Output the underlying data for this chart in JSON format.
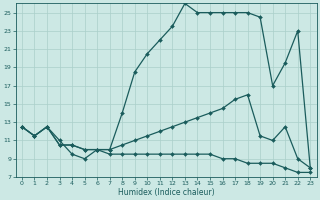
{
  "xlabel": "Humidex (Indice chaleur)",
  "bg_color": "#cce8e4",
  "grid_color": "#aacfca",
  "line_color": "#1a5c5c",
  "xlim": [
    -0.5,
    23.5
  ],
  "ylim": [
    7,
    26
  ],
  "xticks": [
    0,
    1,
    2,
    3,
    4,
    5,
    6,
    7,
    8,
    9,
    10,
    11,
    12,
    13,
    14,
    15,
    16,
    17,
    18,
    19,
    20,
    21,
    22,
    23
  ],
  "yticks": [
    7,
    9,
    11,
    13,
    15,
    17,
    19,
    21,
    23,
    25
  ],
  "line1_x": [
    0,
    1,
    2,
    3,
    4,
    5,
    6,
    7,
    8,
    9,
    10,
    11,
    12,
    13,
    14,
    15,
    16,
    17,
    18,
    19,
    20,
    21,
    22,
    23
  ],
  "line1_y": [
    12.5,
    11.5,
    12.5,
    11.0,
    9.5,
    9.0,
    10.0,
    10.0,
    14.0,
    18.5,
    20.5,
    22.0,
    23.5,
    26.0,
    25.0,
    25.0,
    25.0,
    25.0,
    25.0,
    24.5,
    17.0,
    19.5,
    23.0,
    8.0
  ],
  "line2_x": [
    0,
    1,
    2,
    3,
    4,
    5,
    6,
    7,
    8,
    9,
    10,
    11,
    12,
    13,
    14,
    15,
    16,
    17,
    18,
    19,
    20,
    21,
    22,
    23
  ],
  "line2_y": [
    12.5,
    11.5,
    12.5,
    10.5,
    10.5,
    10.0,
    10.0,
    10.0,
    10.5,
    11.0,
    11.5,
    12.0,
    12.5,
    13.0,
    13.5,
    14.0,
    14.5,
    15.5,
    16.0,
    11.5,
    11.0,
    12.5,
    9.0,
    8.0
  ],
  "line3_x": [
    0,
    1,
    2,
    3,
    4,
    5,
    6,
    7,
    8,
    9,
    10,
    11,
    12,
    13,
    14,
    15,
    16,
    17,
    18,
    19,
    20,
    21,
    22,
    23
  ],
  "line3_y": [
    12.5,
    11.5,
    12.5,
    10.5,
    10.5,
    10.0,
    10.0,
    9.5,
    9.5,
    9.5,
    9.5,
    9.5,
    9.5,
    9.5,
    9.5,
    9.5,
    9.0,
    9.0,
    8.5,
    8.5,
    8.5,
    8.0,
    7.5,
    7.5
  ],
  "marker": "D",
  "marker_size": 2.0,
  "linewidth": 0.9
}
